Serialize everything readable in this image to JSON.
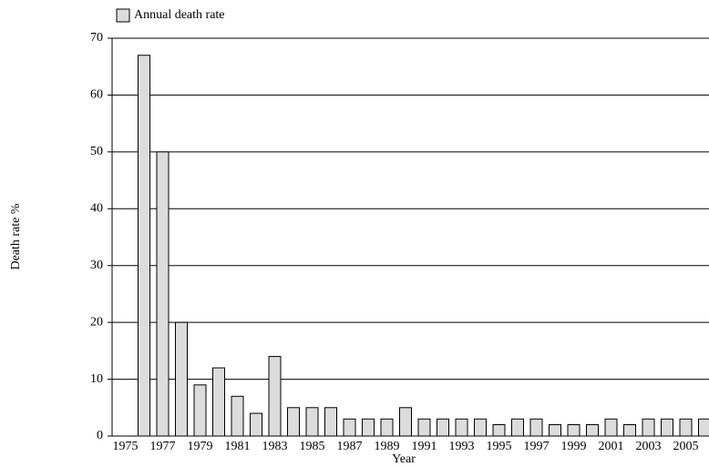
{
  "chart_data": {
    "type": "bar",
    "x_label": "Year",
    "y_label": "Death rate %",
    "categories": [
      "1975",
      null,
      "1977",
      null,
      "1979",
      null,
      "1981",
      null,
      "1983",
      null,
      "1985",
      null,
      "1987",
      null,
      "1989",
      null,
      "1991",
      null,
      "1993",
      null,
      "1995",
      null,
      "1997",
      null,
      "1999",
      null,
      "2001",
      null,
      "2003",
      null,
      "2005",
      null
    ],
    "series": [
      {
        "name": "Annual death rate",
        "color": "#dcdcdc",
        "values": [
          0,
          67,
          50,
          20,
          9,
          12,
          7,
          4,
          14,
          5,
          5,
          5,
          3,
          3,
          3,
          5,
          3,
          3,
          3,
          3,
          2,
          3,
          3,
          2,
          2,
          2,
          3,
          2,
          3,
          3,
          3,
          3
        ]
      }
    ],
    "ylim": [
      0,
      70
    ],
    "yticks": [
      0,
      10,
      20,
      30,
      40,
      50,
      60,
      70
    ],
    "grid": true,
    "legend": "top-left"
  }
}
